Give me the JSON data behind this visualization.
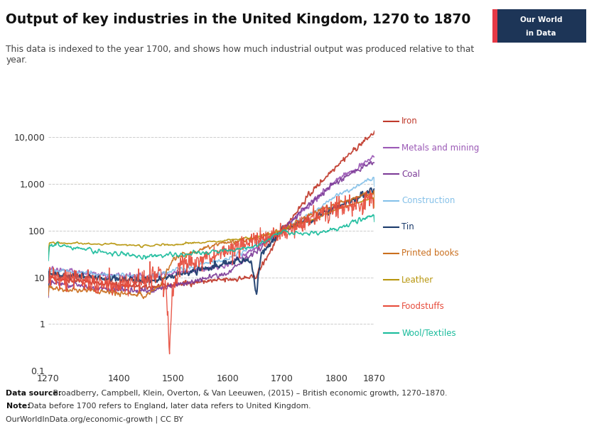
{
  "title": "Output of key industries in the United Kingdom, 1270 to 1870",
  "subtitle": "This data is indexed to the year 1700, and shows how much industrial output was produced relative to that\nyear.",
  "datasource_bold": "Data source:",
  "datasource_rest": " Broadberry, Campbell, Klein, Overton, & Van Leeuwen, (2015) – British economic growth, 1270–1870.",
  "note_bold": "Note:",
  "note_rest": " Data before 1700 refers to England, later data refers to United Kingdom.",
  "url": "OurWorldInData.org/economic-growth | CC BY",
  "xlim": [
    1270,
    1870
  ],
  "ylim_log": [
    0.1,
    30000
  ],
  "yticks": [
    0.1,
    1,
    10,
    100,
    1000,
    10000
  ],
  "ytick_labels": [
    "0.1",
    "1",
    "10",
    "100",
    "1,000",
    "10,000"
  ],
  "xticks": [
    1270,
    1400,
    1500,
    1600,
    1700,
    1800,
    1870
  ],
  "series": {
    "Iron": {
      "color": "#c0392b",
      "lw": 1.3
    },
    "Metals and mining": {
      "color": "#9b59b6",
      "lw": 1.2
    },
    "Coal": {
      "color": "#7d3c98",
      "lw": 1.2
    },
    "Construction": {
      "color": "#85c1e9",
      "lw": 1.2
    },
    "Tin": {
      "color": "#1a3a6b",
      "lw": 1.5
    },
    "Printed books": {
      "color": "#ca6f1e",
      "lw": 1.2
    },
    "Leather": {
      "color": "#b7950b",
      "lw": 1.2
    },
    "Foodstuffs": {
      "color": "#e74c3c",
      "lw": 1.0
    },
    "Wool/Textiles": {
      "color": "#1abc9c",
      "lw": 1.2
    }
  },
  "owid_box_color": "#1d3557",
  "owid_bar_color": "#e63946",
  "background": "#ffffff"
}
